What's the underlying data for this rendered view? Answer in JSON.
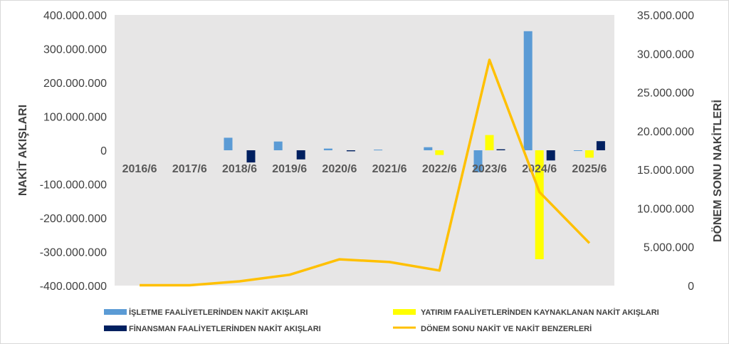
{
  "chart_data": {
    "type": "bar",
    "categories": [
      "2016/6",
      "2017/6",
      "2018/6",
      "2019/6",
      "2020/6",
      "2021/6",
      "2022/6",
      "2023/6",
      "2024/6",
      "2025/6"
    ],
    "series": [
      {
        "name": "İŞLETME FAALİYETLERİNDEN NAKİT AKIŞLARI",
        "type": "bar",
        "axis": "left",
        "color": "#5b9bd5",
        "values": [
          0,
          0,
          37000000,
          26000000,
          5000000,
          2000000,
          9000000,
          -65000000,
          352000000,
          -2000000
        ]
      },
      {
        "name": "YATIRIM FAALİYETLERİNDEN KAYNAKLANAN NAKİT AKIŞLARI",
        "type": "bar",
        "axis": "left",
        "color": "#ffff00",
        "values": [
          0,
          0,
          0,
          0,
          0,
          0,
          -14000000,
          45000000,
          -322000000,
          -22000000
        ]
      },
      {
        "name": "FİNANSMAN FAALİYETLERİNDEN NAKİT AKIŞLARI",
        "type": "bar",
        "axis": "left",
        "color": "#002060",
        "values": [
          0,
          0,
          -36000000,
          -27000000,
          -3000000,
          0,
          0,
          3000000,
          -30000000,
          27000000
        ]
      },
      {
        "name": "DÖNEM SONU NAKİT VE NAKİT BENZERLERİ",
        "type": "line",
        "axis": "right",
        "color": "#ffc000",
        "values": [
          50000,
          50000,
          550000,
          1400000,
          3400000,
          3050000,
          1950000,
          29200000,
          12100000,
          5500000
        ]
      }
    ],
    "ylabel": "NAKİT AKIŞLARI",
    "y2label": "DÖNEM SONU NAKİTLERİ",
    "ylim": [
      -400000000,
      400000000
    ],
    "y2lim": [
      0,
      35000000
    ],
    "yticks": [
      "400.000.000",
      "300.000.000",
      "200.000.000",
      "100.000.000",
      "0",
      "-100.000.000",
      "-200.000.000",
      "-300.000.000",
      "-400.000.000"
    ],
    "y2ticks": [
      "35.000.000",
      "30.000.000",
      "25.000.000",
      "20.000.000",
      "15.000.000",
      "10.000.000",
      "5.000.000",
      "0"
    ],
    "grid": false,
    "plot_background": "#e7e6e6",
    "legend_position": "bottom"
  }
}
